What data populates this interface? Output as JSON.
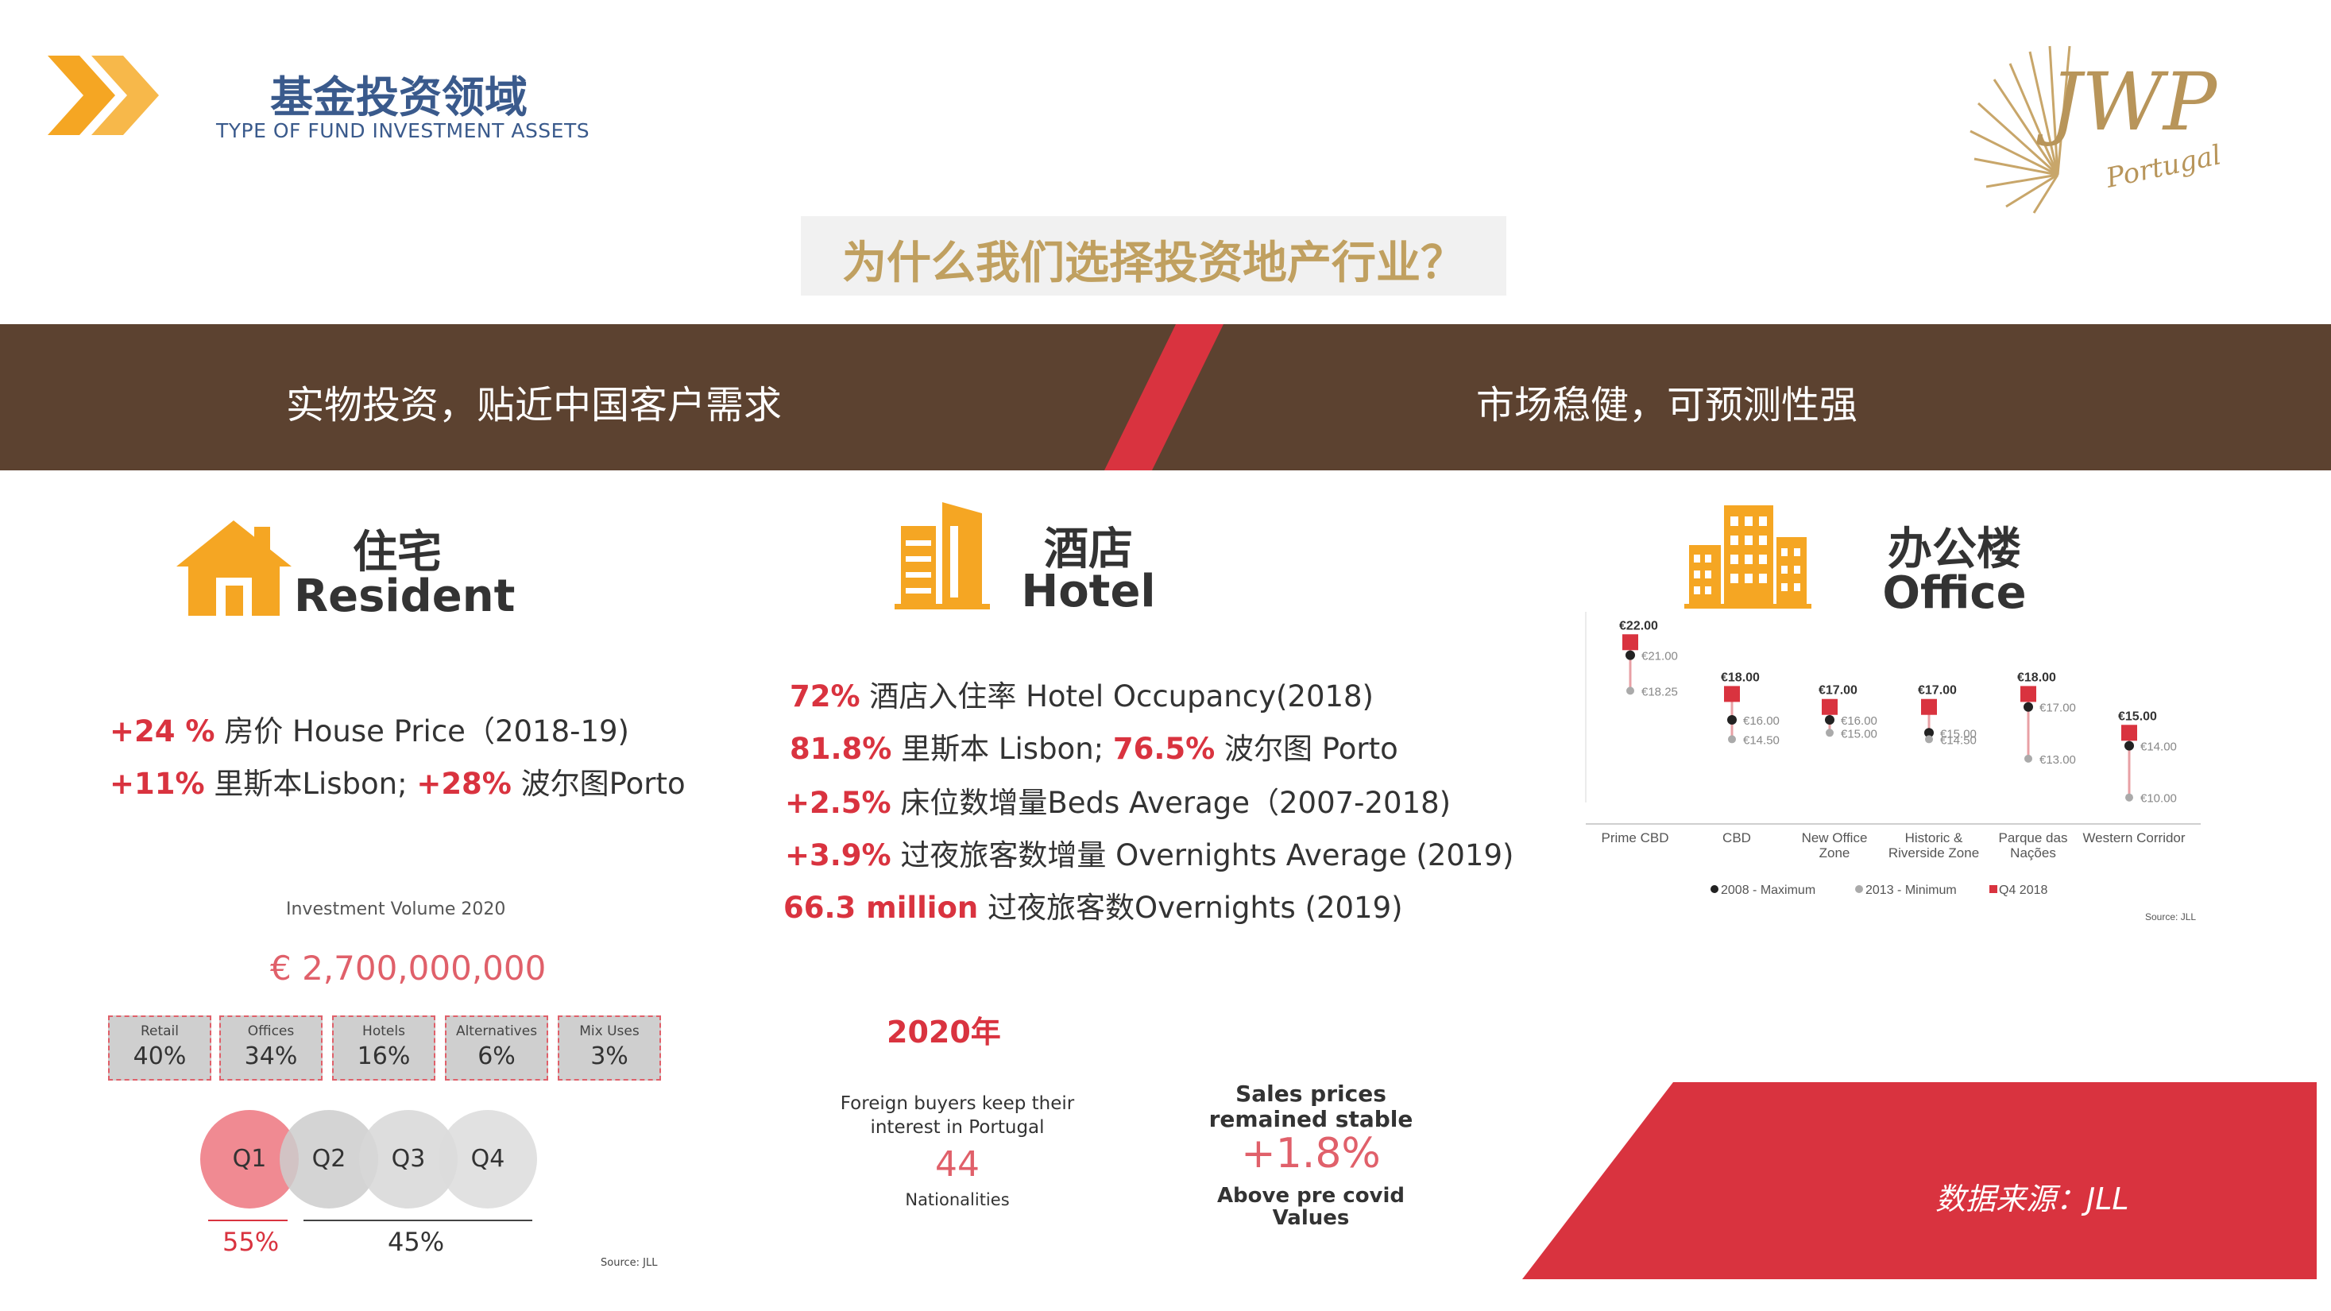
{
  "header": {
    "title": "基金投资领域",
    "subtitle": "TYPE OF FUND INVESTMENT ASSETS",
    "logo_text": "JWP",
    "logo_sub": "Portugal"
  },
  "question": "为什么我们选择投资地产行业？",
  "banner": {
    "left": "实物投资，贴近中国客户需求",
    "right": "市场稳健，可预测性强"
  },
  "colors": {
    "banner_brown": "#5c4230",
    "accent_red": "#d9333f",
    "icon_orange": "#f5a623",
    "title_blue": "#3a5a8c",
    "gold": "#c0a060"
  },
  "resident": {
    "icon": "house-icon",
    "cn": "住宅",
    "en": "Resident",
    "line1_hl": "+24 %",
    "line1_text": " 房价 House Price（2018-19)",
    "line2_hl1": "+11%",
    "line2_text1": " 里斯本Lisbon; ",
    "line2_hl2": "+28%",
    "line2_text2": " 波尔图Porto",
    "investment": {
      "title": "Investment Volume 2020",
      "total": "€ 2,700,000,000",
      "segments": [
        {
          "label": "Retail",
          "value": "40%"
        },
        {
          "label": "Offices",
          "value": "34%"
        },
        {
          "label": "Hotels",
          "value": "16%"
        },
        {
          "label": "Alternatives",
          "value": "6%"
        },
        {
          "label": "Mix Uses",
          "value": "3%"
        }
      ],
      "quarters": [
        "Q1",
        "Q2",
        "Q3",
        "Q4"
      ],
      "q1_pct": "55%",
      "rest_pct": "45%",
      "source": "Source: JLL"
    }
  },
  "hotel": {
    "icon": "hotel-building-icon",
    "cn": "酒店",
    "en": "Hotel",
    "lines": [
      {
        "hl": "72%",
        "text": "  酒店入住率 Hotel Occupancy(2018)"
      },
      {
        "hl": "81.8%",
        "text": " 里斯本 Lisbon; ",
        "hl2": "76.5%",
        "text2": " 波尔图 Porto"
      },
      {
        "hl": "+2.5%",
        "text": " 床位数增量Beds Average（2007-2018)"
      },
      {
        "hl": "+3.9%",
        "text": " 过夜旅客数增量 Overnights Average (2019)"
      },
      {
        "hl": "66.3 million",
        "text": " 过夜旅客数Overnights (2019)"
      }
    ],
    "year": "2020年",
    "foreign_label_1": "Foreign buyers keep their",
    "foreign_label_2": "interest in Portugal",
    "foreign_value": "44",
    "foreign_unit": "Nationalities",
    "sales_label_1": "Sales prices",
    "sales_label_2": "remained stable",
    "sales_value": "+1.8%",
    "sales_note_1": "Above pre covid",
    "sales_note_2": "Values"
  },
  "office": {
    "icon": "office-buildings-icon",
    "cn": "办公楼",
    "en": "Office",
    "chart_data": {
      "type": "scatter",
      "categories": [
        "Prime CBD",
        "CBD",
        "New Office Zone",
        "Historic & Riverside Zone",
        "Parque das Nações",
        "Western Corridor"
      ],
      "category_lines": [
        [
          "Prime CBD"
        ],
        [
          "CBD"
        ],
        [
          "New Office",
          "Zone"
        ],
        [
          "Historic &",
          "Riverside Zone"
        ],
        [
          "Parque das",
          "Nações"
        ],
        [
          "Western Corridor"
        ]
      ],
      "series": [
        {
          "name": "2008 - Maximum",
          "values": [
            21.0,
            16.0,
            16.0,
            15.0,
            17.0,
            14.0
          ],
          "labels": [
            "€21.00",
            "€16.00",
            "€16.00",
            "€15.00",
            "€17.00",
            "€14.00"
          ],
          "color": "#222222"
        },
        {
          "name": "2013 - Minimum",
          "values": [
            18.25,
            14.5,
            15.0,
            14.5,
            13.0,
            10.0
          ],
          "labels": [
            "€18.25",
            "€14.50",
            "€15.00",
            "€14.50",
            "€13.00",
            "€10.00"
          ],
          "color": "#aaaaaa"
        },
        {
          "name": "Q4 2018",
          "values": [
            22.0,
            18.0,
            17.0,
            17.0,
            18.0,
            15.0
          ],
          "labels": [
            "€22.00",
            "€18.00",
            "€17.00",
            "€17.00",
            "€18.00",
            "€15.00"
          ],
          "color": "#d9333f"
        }
      ],
      "ylim": [
        9,
        23
      ],
      "legend": "bottom",
      "source": "Source: JLL"
    }
  },
  "data_source": "数据来源：JLL"
}
